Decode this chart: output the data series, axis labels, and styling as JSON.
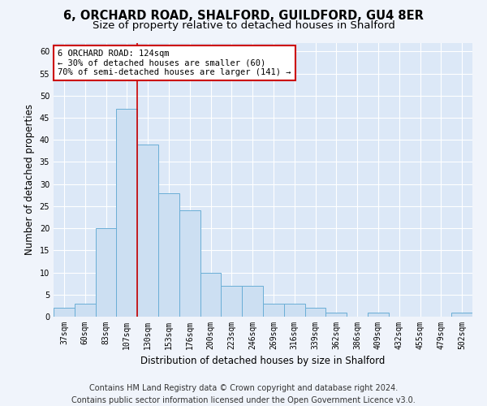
{
  "title_line1": "6, ORCHARD ROAD, SHALFORD, GUILDFORD, GU4 8ER",
  "title_line2": "Size of property relative to detached houses in Shalford",
  "xlabel": "Distribution of detached houses by size in Shalford",
  "ylabel": "Number of detached properties",
  "categories": [
    "37sqm",
    "60sqm",
    "83sqm",
    "107sqm",
    "130sqm",
    "153sqm",
    "176sqm",
    "200sqm",
    "223sqm",
    "246sqm",
    "269sqm",
    "316sqm",
    "339sqm",
    "362sqm",
    "386sqm",
    "409sqm",
    "432sqm",
    "455sqm",
    "479sqm",
    "502sqm"
  ],
  "values": [
    2,
    3,
    20,
    47,
    39,
    28,
    24,
    10,
    7,
    7,
    3,
    3,
    2,
    1,
    0,
    1,
    0,
    0,
    0,
    1
  ],
  "bar_color": "#ccdff2",
  "bar_edge_color": "#6aaed6",
  "vline_color": "#cc0000",
  "vline_x_index": 3.5,
  "annotation_line1": "6 ORCHARD ROAD: 124sqm",
  "annotation_line2": "← 30% of detached houses are smaller (60)",
  "annotation_line3": "70% of semi-detached houses are larger (141) →",
  "annotation_box_edgecolor": "#cc0000",
  "annotation_box_facecolor": "#ffffff",
  "ylim": [
    0,
    62
  ],
  "yticks": [
    0,
    5,
    10,
    15,
    20,
    25,
    30,
    35,
    40,
    45,
    50,
    55,
    60
  ],
  "footer_line1": "Contains HM Land Registry data © Crown copyright and database right 2024.",
  "footer_line2": "Contains public sector information licensed under the Open Government Licence v3.0.",
  "fig_facecolor": "#f0f4fb",
  "axes_facecolor": "#dce8f7",
  "title1_fontsize": 10.5,
  "title2_fontsize": 9.5,
  "axis_label_fontsize": 8.5,
  "tick_fontsize": 7,
  "annotation_fontsize": 7.5,
  "footer_fontsize": 7
}
